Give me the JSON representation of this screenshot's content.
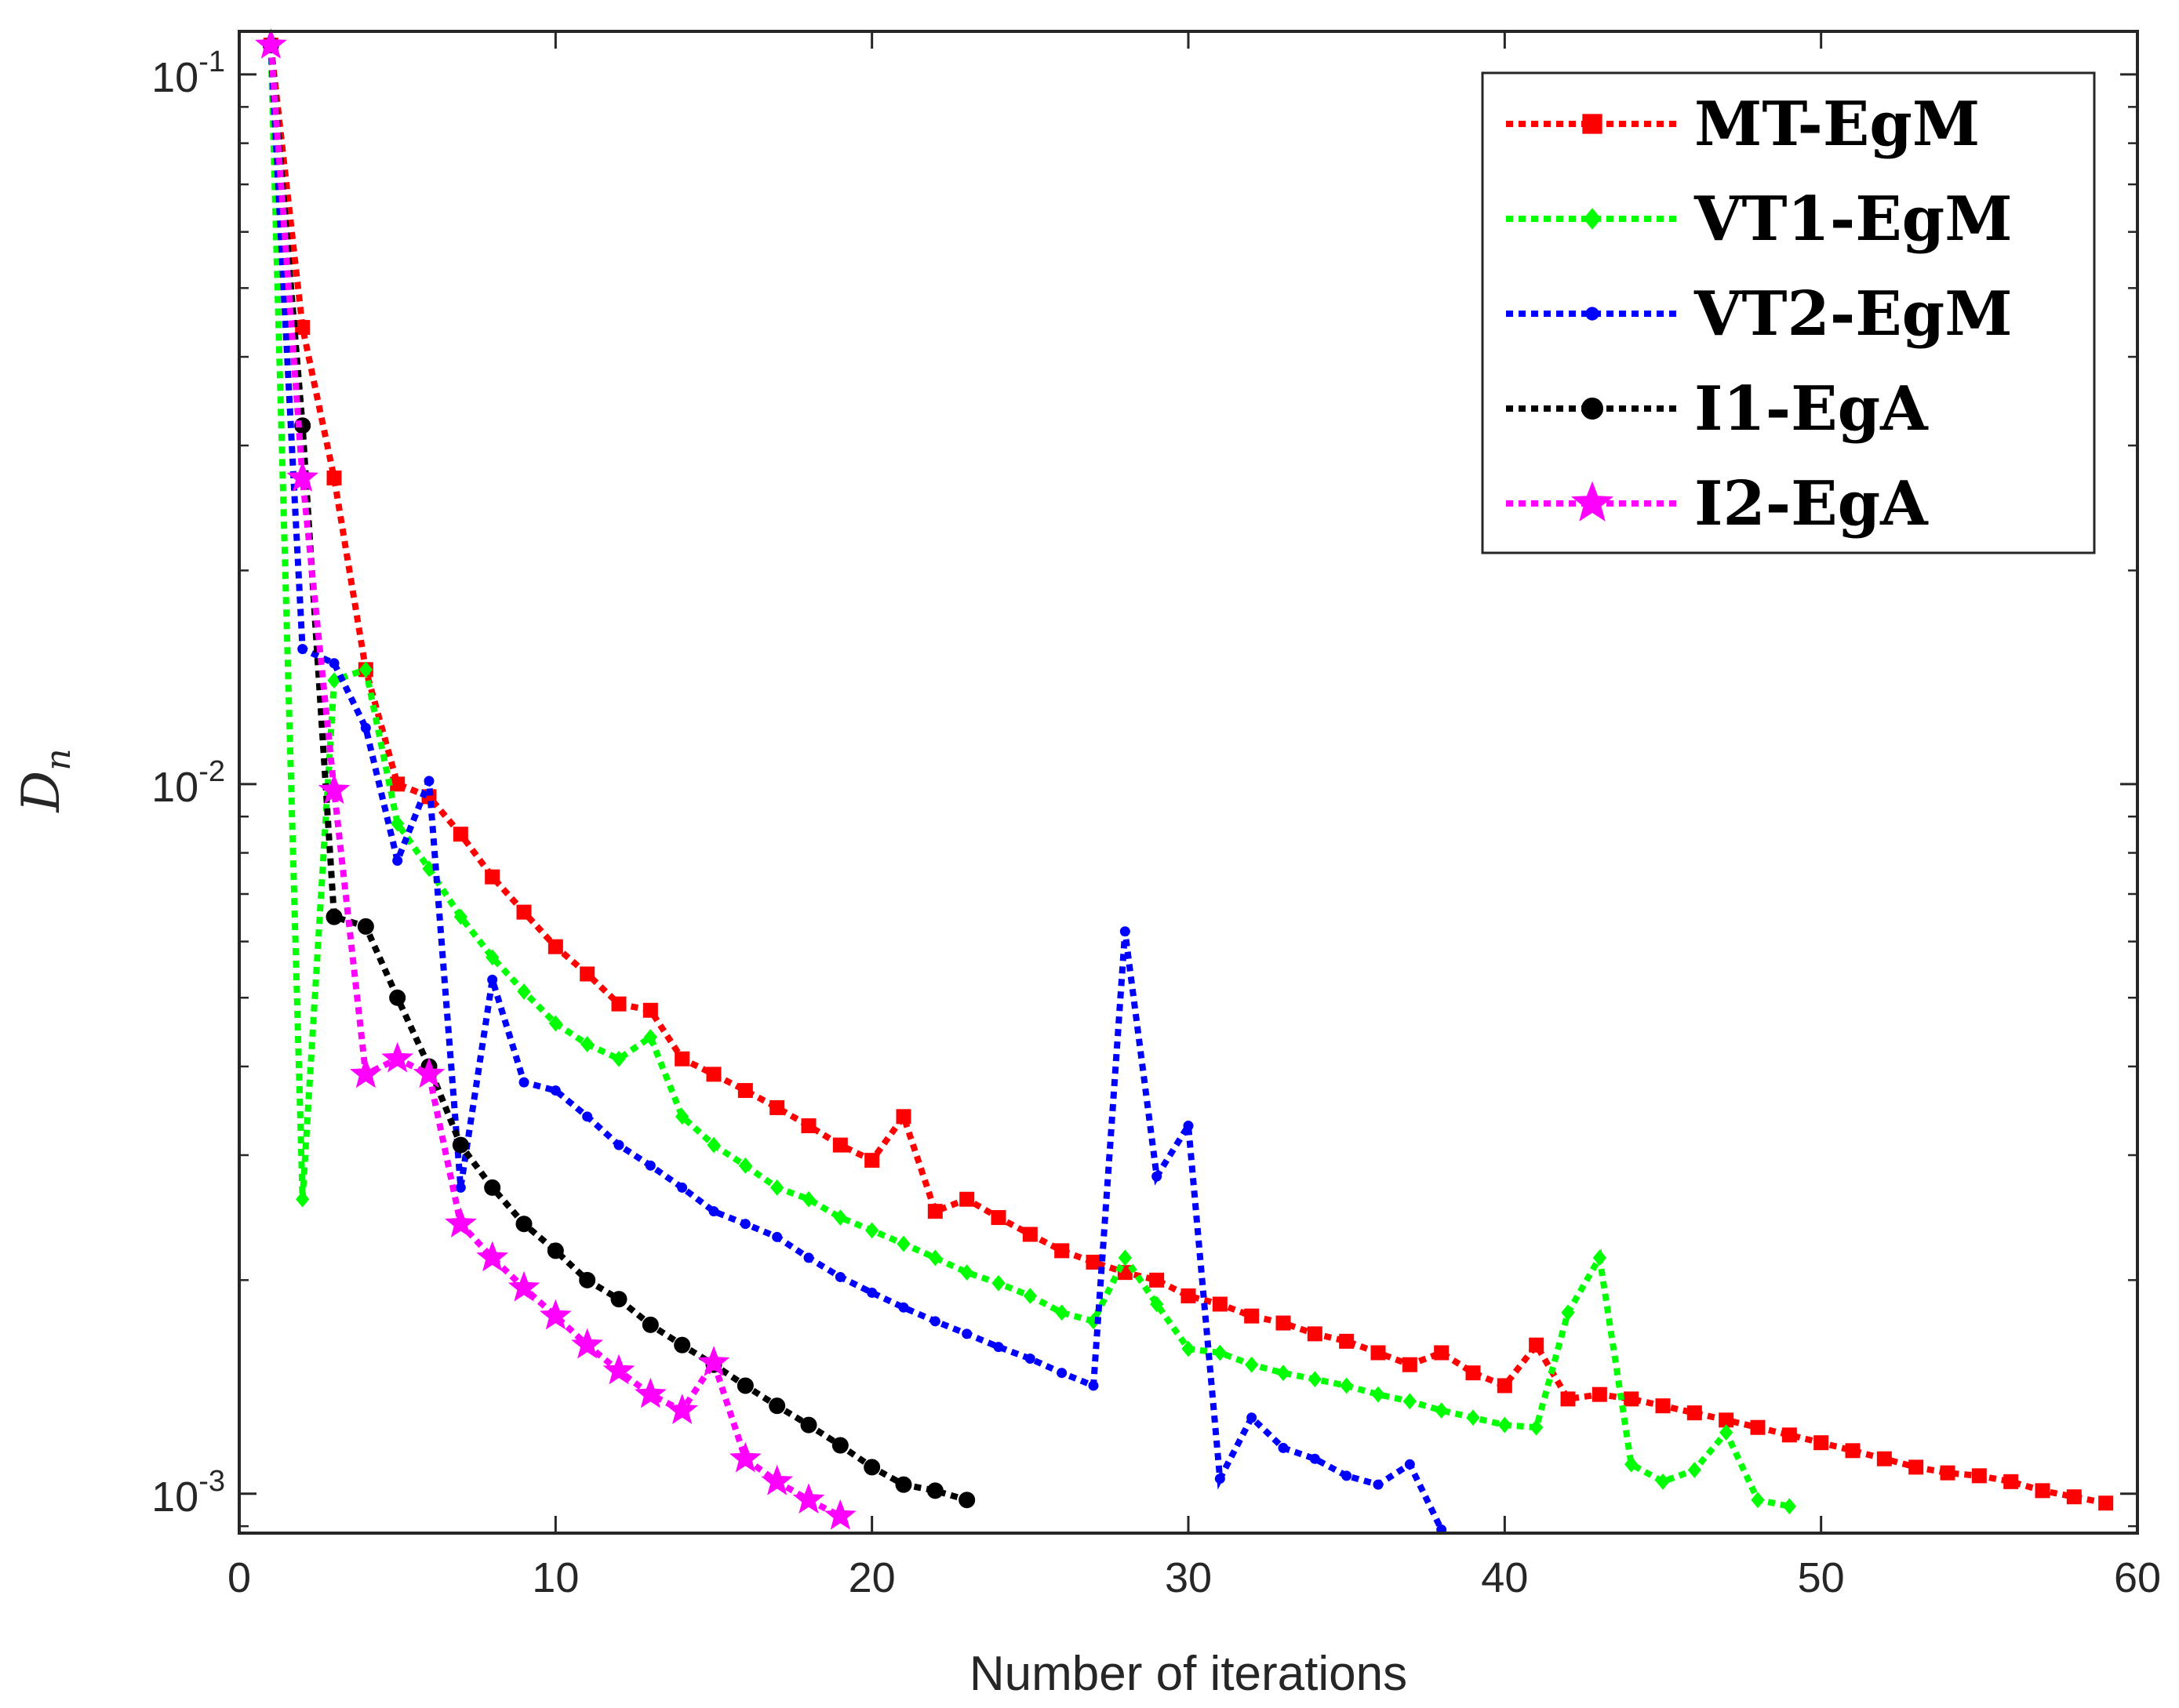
{
  "chart_data": {
    "type": "line",
    "xlabel": "Number of iterations",
    "ylabel_base": "D",
    "ylabel_sub": "n",
    "x_scale": "linear",
    "y_scale": "log",
    "xlim": [
      0,
      60
    ],
    "ylim": [
      0.00088,
      0.115
    ],
    "x_ticks": [
      {
        "value": 0,
        "label": "0"
      },
      {
        "value": 10,
        "label": "10"
      },
      {
        "value": 20,
        "label": "20"
      },
      {
        "value": 30,
        "label": "30"
      },
      {
        "value": 40,
        "label": "40"
      },
      {
        "value": 50,
        "label": "50"
      },
      {
        "value": 60,
        "label": "60"
      }
    ],
    "y_ticks": [
      {
        "value": 0.1,
        "base": "10",
        "exp": "-1"
      },
      {
        "value": 0.01,
        "base": "10",
        "exp": "-2"
      },
      {
        "value": 0.001,
        "base": "10",
        "exp": "-3"
      }
    ],
    "grid": false,
    "legend_position": "top-right",
    "series": [
      {
        "name": "MT-EgM",
        "color": "#ff0000",
        "marker": "square",
        "x": [
          1,
          2,
          3,
          4,
          5,
          6,
          7,
          8,
          9,
          10,
          11,
          12,
          13,
          14,
          15,
          16,
          17,
          18,
          19,
          20,
          21,
          22,
          23,
          24,
          25,
          26,
          27,
          28,
          29,
          30,
          31,
          32,
          33,
          34,
          35,
          36,
          37,
          38,
          39,
          40,
          41,
          42,
          43,
          44,
          45,
          46,
          47,
          48,
          49,
          50,
          51,
          52,
          53,
          54,
          55,
          56,
          57,
          58,
          59
        ],
        "y": [
          0.11,
          0.044,
          0.027,
          0.0145,
          0.01,
          0.0096,
          0.0085,
          0.0074,
          0.0066,
          0.0059,
          0.0054,
          0.0049,
          0.0048,
          0.0041,
          0.0039,
          0.0037,
          0.0035,
          0.0033,
          0.0031,
          0.00295,
          0.0034,
          0.0025,
          0.0026,
          0.00245,
          0.00232,
          0.0022,
          0.00212,
          0.00205,
          0.002,
          0.0019,
          0.00185,
          0.00178,
          0.00174,
          0.00168,
          0.00164,
          0.00158,
          0.00152,
          0.00158,
          0.00148,
          0.00142,
          0.00162,
          0.00136,
          0.00138,
          0.00136,
          0.00133,
          0.0013,
          0.00127,
          0.00124,
          0.00121,
          0.00118,
          0.00115,
          0.00112,
          0.00109,
          0.00107,
          0.00106,
          0.00104,
          0.00101,
          0.00099,
          0.00097
        ]
      },
      {
        "name": "VT1-EgM",
        "color": "#00ff00",
        "marker": "diamond",
        "x": [
          1,
          2,
          3,
          4,
          5,
          6,
          7,
          8,
          9,
          10,
          11,
          12,
          13,
          14,
          15,
          16,
          17,
          18,
          19,
          20,
          21,
          22,
          23,
          24,
          25,
          26,
          27,
          28,
          29,
          30,
          31,
          32,
          33,
          34,
          35,
          36,
          37,
          38,
          39,
          40,
          41,
          42,
          43,
          44,
          45,
          46,
          47,
          48,
          49
        ],
        "y": [
          0.11,
          0.0026,
          0.014,
          0.0145,
          0.0088,
          0.0076,
          0.0065,
          0.0057,
          0.0051,
          0.0046,
          0.0043,
          0.0041,
          0.0044,
          0.0034,
          0.0031,
          0.0029,
          0.0027,
          0.0026,
          0.00245,
          0.00235,
          0.00225,
          0.00215,
          0.00205,
          0.00198,
          0.0019,
          0.0018,
          0.00175,
          0.00215,
          0.00185,
          0.0016,
          0.00158,
          0.00152,
          0.00148,
          0.00145,
          0.00142,
          0.00138,
          0.00135,
          0.00131,
          0.00128,
          0.00125,
          0.00124,
          0.0018,
          0.00215,
          0.0011,
          0.00104,
          0.00108,
          0.00122,
          0.00098,
          0.00096
        ]
      },
      {
        "name": "VT2-EgM",
        "color": "#0000ff",
        "marker": "dot",
        "x": [
          1,
          2,
          3,
          4,
          5,
          6,
          7,
          8,
          9,
          10,
          11,
          12,
          13,
          14,
          15,
          16,
          17,
          18,
          19,
          20,
          21,
          22,
          23,
          24,
          25,
          26,
          27,
          28,
          29,
          30,
          31,
          32,
          33,
          34,
          35,
          36,
          37,
          38
        ],
        "y": [
          0.11,
          0.0155,
          0.0148,
          0.012,
          0.0078,
          0.0101,
          0.0027,
          0.0053,
          0.0038,
          0.0037,
          0.0034,
          0.0031,
          0.0029,
          0.0027,
          0.0025,
          0.0024,
          0.0023,
          0.00215,
          0.00202,
          0.00192,
          0.00183,
          0.00175,
          0.00168,
          0.00161,
          0.00155,
          0.00148,
          0.00142,
          0.0062,
          0.0028,
          0.0033,
          0.00105,
          0.00128,
          0.00116,
          0.00112,
          0.00106,
          0.00103,
          0.0011,
          0.00089
        ]
      },
      {
        "name": "I1-EgA",
        "color": "#000000",
        "marker": "circle",
        "x": [
          1,
          2,
          3,
          4,
          5,
          6,
          7,
          8,
          9,
          10,
          11,
          12,
          13,
          14,
          15,
          16,
          17,
          18,
          19,
          20,
          21,
          22,
          23
        ],
        "y": [
          0.11,
          0.032,
          0.0065,
          0.0063,
          0.005,
          0.004,
          0.0031,
          0.0027,
          0.0024,
          0.0022,
          0.002,
          0.00188,
          0.00173,
          0.00162,
          0.00152,
          0.00142,
          0.00133,
          0.00125,
          0.00117,
          0.00109,
          0.00103,
          0.00101,
          0.00098
        ]
      },
      {
        "name": "I2-EgA",
        "color": "#ff00ff",
        "marker": "star",
        "x": [
          1,
          2,
          3,
          4,
          5,
          6,
          7,
          8,
          9,
          10,
          11,
          12,
          13,
          14,
          15,
          16,
          17,
          18,
          19
        ],
        "y": [
          0.11,
          0.027,
          0.0098,
          0.0039,
          0.0041,
          0.0039,
          0.0024,
          0.00215,
          0.00195,
          0.00178,
          0.00162,
          0.00149,
          0.00138,
          0.00131,
          0.00153,
          0.00112,
          0.00104,
          0.00098,
          0.00093
        ]
      }
    ]
  }
}
